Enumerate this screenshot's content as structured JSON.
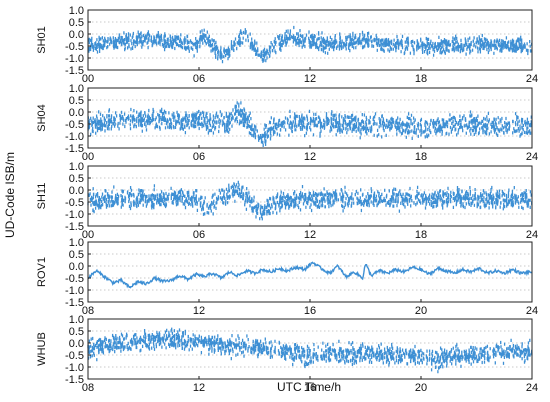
{
  "chart_data": {
    "type": "line",
    "shared_ylabel": "UD-Code ISB/m",
    "shared_xlabel": "UTC Time/h",
    "series_color": "#3d8fd4",
    "grid": "horizontal-dotted",
    "panels": [
      {
        "name": "SH01",
        "xlim": [
          0,
          24
        ],
        "xticks": [
          0,
          6,
          12,
          18,
          24
        ],
        "xtick_labels": [
          "00",
          "06",
          "12",
          "18",
          "24"
        ],
        "ylim": [
          -1.5,
          1.0
        ],
        "yticks": [
          1.0,
          0.5,
          0.0,
          -0.5,
          -1.0,
          -1.5
        ],
        "ytick_labels": [
          "1.0",
          "0.5",
          "0.0",
          "-0.5",
          "-1.0",
          "-1.5"
        ],
        "style": "scatter-band",
        "band_width": 0.42,
        "x": [
          0,
          1,
          2,
          3,
          4,
          5,
          5.8,
          6.2,
          6.6,
          7.0,
          7.4,
          8.0,
          8.5,
          9.0,
          9.5,
          10.0,
          10.5,
          11.0,
          11.5,
          12,
          13,
          14,
          15,
          16,
          17,
          18,
          19,
          20,
          21,
          22,
          23,
          24
        ],
        "values": [
          -0.45,
          -0.4,
          -0.3,
          -0.2,
          -0.3,
          -0.35,
          -0.55,
          -0.15,
          -0.35,
          -0.75,
          -0.85,
          -0.4,
          -0.05,
          -0.6,
          -0.95,
          -0.55,
          -0.3,
          -0.1,
          -0.25,
          -0.3,
          -0.4,
          -0.35,
          -0.3,
          -0.4,
          -0.45,
          -0.5,
          -0.5,
          -0.45,
          -0.4,
          -0.45,
          -0.5,
          -0.55
        ]
      },
      {
        "name": "SH04",
        "xlim": [
          0,
          24
        ],
        "xticks": [
          0,
          6,
          12,
          18,
          24
        ],
        "xtick_labels": [
          "00",
          "06",
          "12",
          "18",
          "24"
        ],
        "ylim": [
          -1.5,
          1.0
        ],
        "yticks": [
          1.0,
          0.5,
          0.0,
          -0.5,
          -1.0,
          -1.5
        ],
        "ytick_labels": [
          "1.0",
          "0.5",
          "0.0",
          "-0.5",
          "-1.0",
          "-1.5"
        ],
        "style": "scatter-band",
        "band_width": 0.55,
        "x": [
          0,
          1,
          2,
          3,
          4,
          5,
          6,
          6.5,
          7.0,
          7.5,
          8.0,
          8.5,
          9.0,
          9.5,
          10.0,
          10.5,
          11,
          12,
          13,
          14,
          15,
          16,
          17,
          18,
          19,
          20,
          21,
          22,
          23,
          24
        ],
        "values": [
          -0.55,
          -0.45,
          -0.4,
          -0.3,
          -0.35,
          -0.4,
          -0.3,
          -0.55,
          -0.35,
          -0.5,
          -0.05,
          -0.25,
          -0.8,
          -1.05,
          -0.6,
          -0.5,
          -0.45,
          -0.5,
          -0.45,
          -0.5,
          -0.55,
          -0.5,
          -0.6,
          -0.65,
          -0.55,
          -0.5,
          -0.5,
          -0.6,
          -0.55,
          -0.6
        ]
      },
      {
        "name": "SH11",
        "xlim": [
          0,
          24
        ],
        "xticks": [
          0,
          6,
          12,
          18,
          24
        ],
        "xtick_labels": [
          "00",
          "06",
          "12",
          "18",
          "24"
        ],
        "ylim": [
          -1.5,
          1.0
        ],
        "yticks": [
          1.0,
          0.5,
          0.0,
          -0.5,
          -1.0,
          -1.5
        ],
        "ytick_labels": [
          "1.0",
          "0.5",
          "0.0",
          "-0.5",
          "-1.0",
          "-1.5"
        ],
        "style": "scatter-band",
        "band_width": 0.5,
        "x": [
          0,
          1,
          2,
          3,
          4,
          5,
          6,
          6.5,
          7.0,
          7.5,
          8.0,
          8.5,
          9.0,
          9.5,
          10.0,
          10.5,
          11,
          12,
          13,
          14,
          15,
          16,
          17,
          18,
          19,
          20,
          21,
          22,
          23,
          24
        ],
        "values": [
          -0.45,
          -0.4,
          -0.35,
          -0.4,
          -0.35,
          -0.3,
          -0.45,
          -0.8,
          -0.4,
          -0.2,
          0.0,
          -0.3,
          -0.65,
          -0.9,
          -0.55,
          -0.45,
          -0.4,
          -0.4,
          -0.35,
          -0.35,
          -0.4,
          -0.35,
          -0.35,
          -0.4,
          -0.35,
          -0.35,
          -0.35,
          -0.4,
          -0.35,
          -0.4
        ]
      },
      {
        "name": "ROV1",
        "xlim": [
          8,
          24
        ],
        "xticks": [
          8,
          12,
          16,
          20,
          24
        ],
        "xtick_labels": [
          "08",
          "12",
          "16",
          "20",
          "24"
        ],
        "ylim": [
          -1.5,
          1.0
        ],
        "yticks": [
          1.0,
          0.5,
          0.0,
          -0.5,
          -1.0,
          -1.5
        ],
        "ytick_labels": [
          "1.0",
          "0.5",
          "0.0",
          "-0.5",
          "-1.0",
          "-1.5"
        ],
        "style": "line",
        "band_width": 0.05,
        "x": [
          8.0,
          8.3,
          8.6,
          8.9,
          9.2,
          9.5,
          9.8,
          10.1,
          10.4,
          10.7,
          11.0,
          11.3,
          11.6,
          11.9,
          12.2,
          12.5,
          12.8,
          13.1,
          13.4,
          13.7,
          14.0,
          14.3,
          14.6,
          14.9,
          15.2,
          15.5,
          15.8,
          16.1,
          16.4,
          16.7,
          17.0,
          17.3,
          17.6,
          17.9,
          18.0,
          18.2,
          18.5,
          18.8,
          19.1,
          19.4,
          19.7,
          20.0,
          20.3,
          20.6,
          20.9,
          21.2,
          21.5,
          21.8,
          22.1,
          22.4,
          22.7,
          23.0,
          23.3,
          23.6,
          24.0
        ],
        "values": [
          -0.5,
          -0.2,
          -0.45,
          -0.7,
          -0.6,
          -0.9,
          -0.65,
          -0.75,
          -0.5,
          -0.65,
          -0.6,
          -0.4,
          -0.55,
          -0.35,
          -0.45,
          -0.3,
          -0.5,
          -0.25,
          -0.4,
          -0.2,
          -0.3,
          -0.15,
          -0.25,
          -0.1,
          -0.2,
          -0.05,
          -0.15,
          0.15,
          -0.1,
          -0.3,
          0.0,
          -0.45,
          -0.25,
          -0.5,
          0.1,
          -0.4,
          -0.2,
          -0.3,
          -0.15,
          -0.25,
          -0.05,
          -0.15,
          -0.35,
          -0.1,
          -0.2,
          -0.3,
          -0.15,
          -0.25,
          -0.1,
          -0.3,
          -0.2,
          -0.3,
          -0.15,
          -0.3,
          -0.25
        ]
      },
      {
        "name": "WHUB",
        "xlim": [
          8,
          24
        ],
        "xticks": [
          8,
          12,
          16,
          20,
          24
        ],
        "xtick_labels": [
          "08",
          "12",
          "16",
          "20",
          "24"
        ],
        "ylim": [
          -1.5,
          1.0
        ],
        "yticks": [
          1.0,
          0.5,
          0.0,
          -0.5,
          -1.0,
          -1.5
        ],
        "ytick_labels": [
          "1.0",
          "0.5",
          "0.0",
          "-0.5",
          "-1.0",
          "-1.5"
        ],
        "style": "scatter-band",
        "band_width": 0.5,
        "x": [
          8,
          9,
          10,
          11,
          12,
          13,
          14,
          15,
          15.5,
          16,
          16.5,
          17,
          18,
          19,
          20,
          20.5,
          21,
          22,
          23,
          24
        ],
        "values": [
          -0.25,
          -0.05,
          0.1,
          0.15,
          0.05,
          -0.1,
          -0.2,
          -0.3,
          -0.45,
          -0.55,
          -0.4,
          -0.45,
          -0.45,
          -0.5,
          -0.55,
          -0.75,
          -0.6,
          -0.5,
          -0.35,
          -0.3
        ]
      }
    ]
  }
}
